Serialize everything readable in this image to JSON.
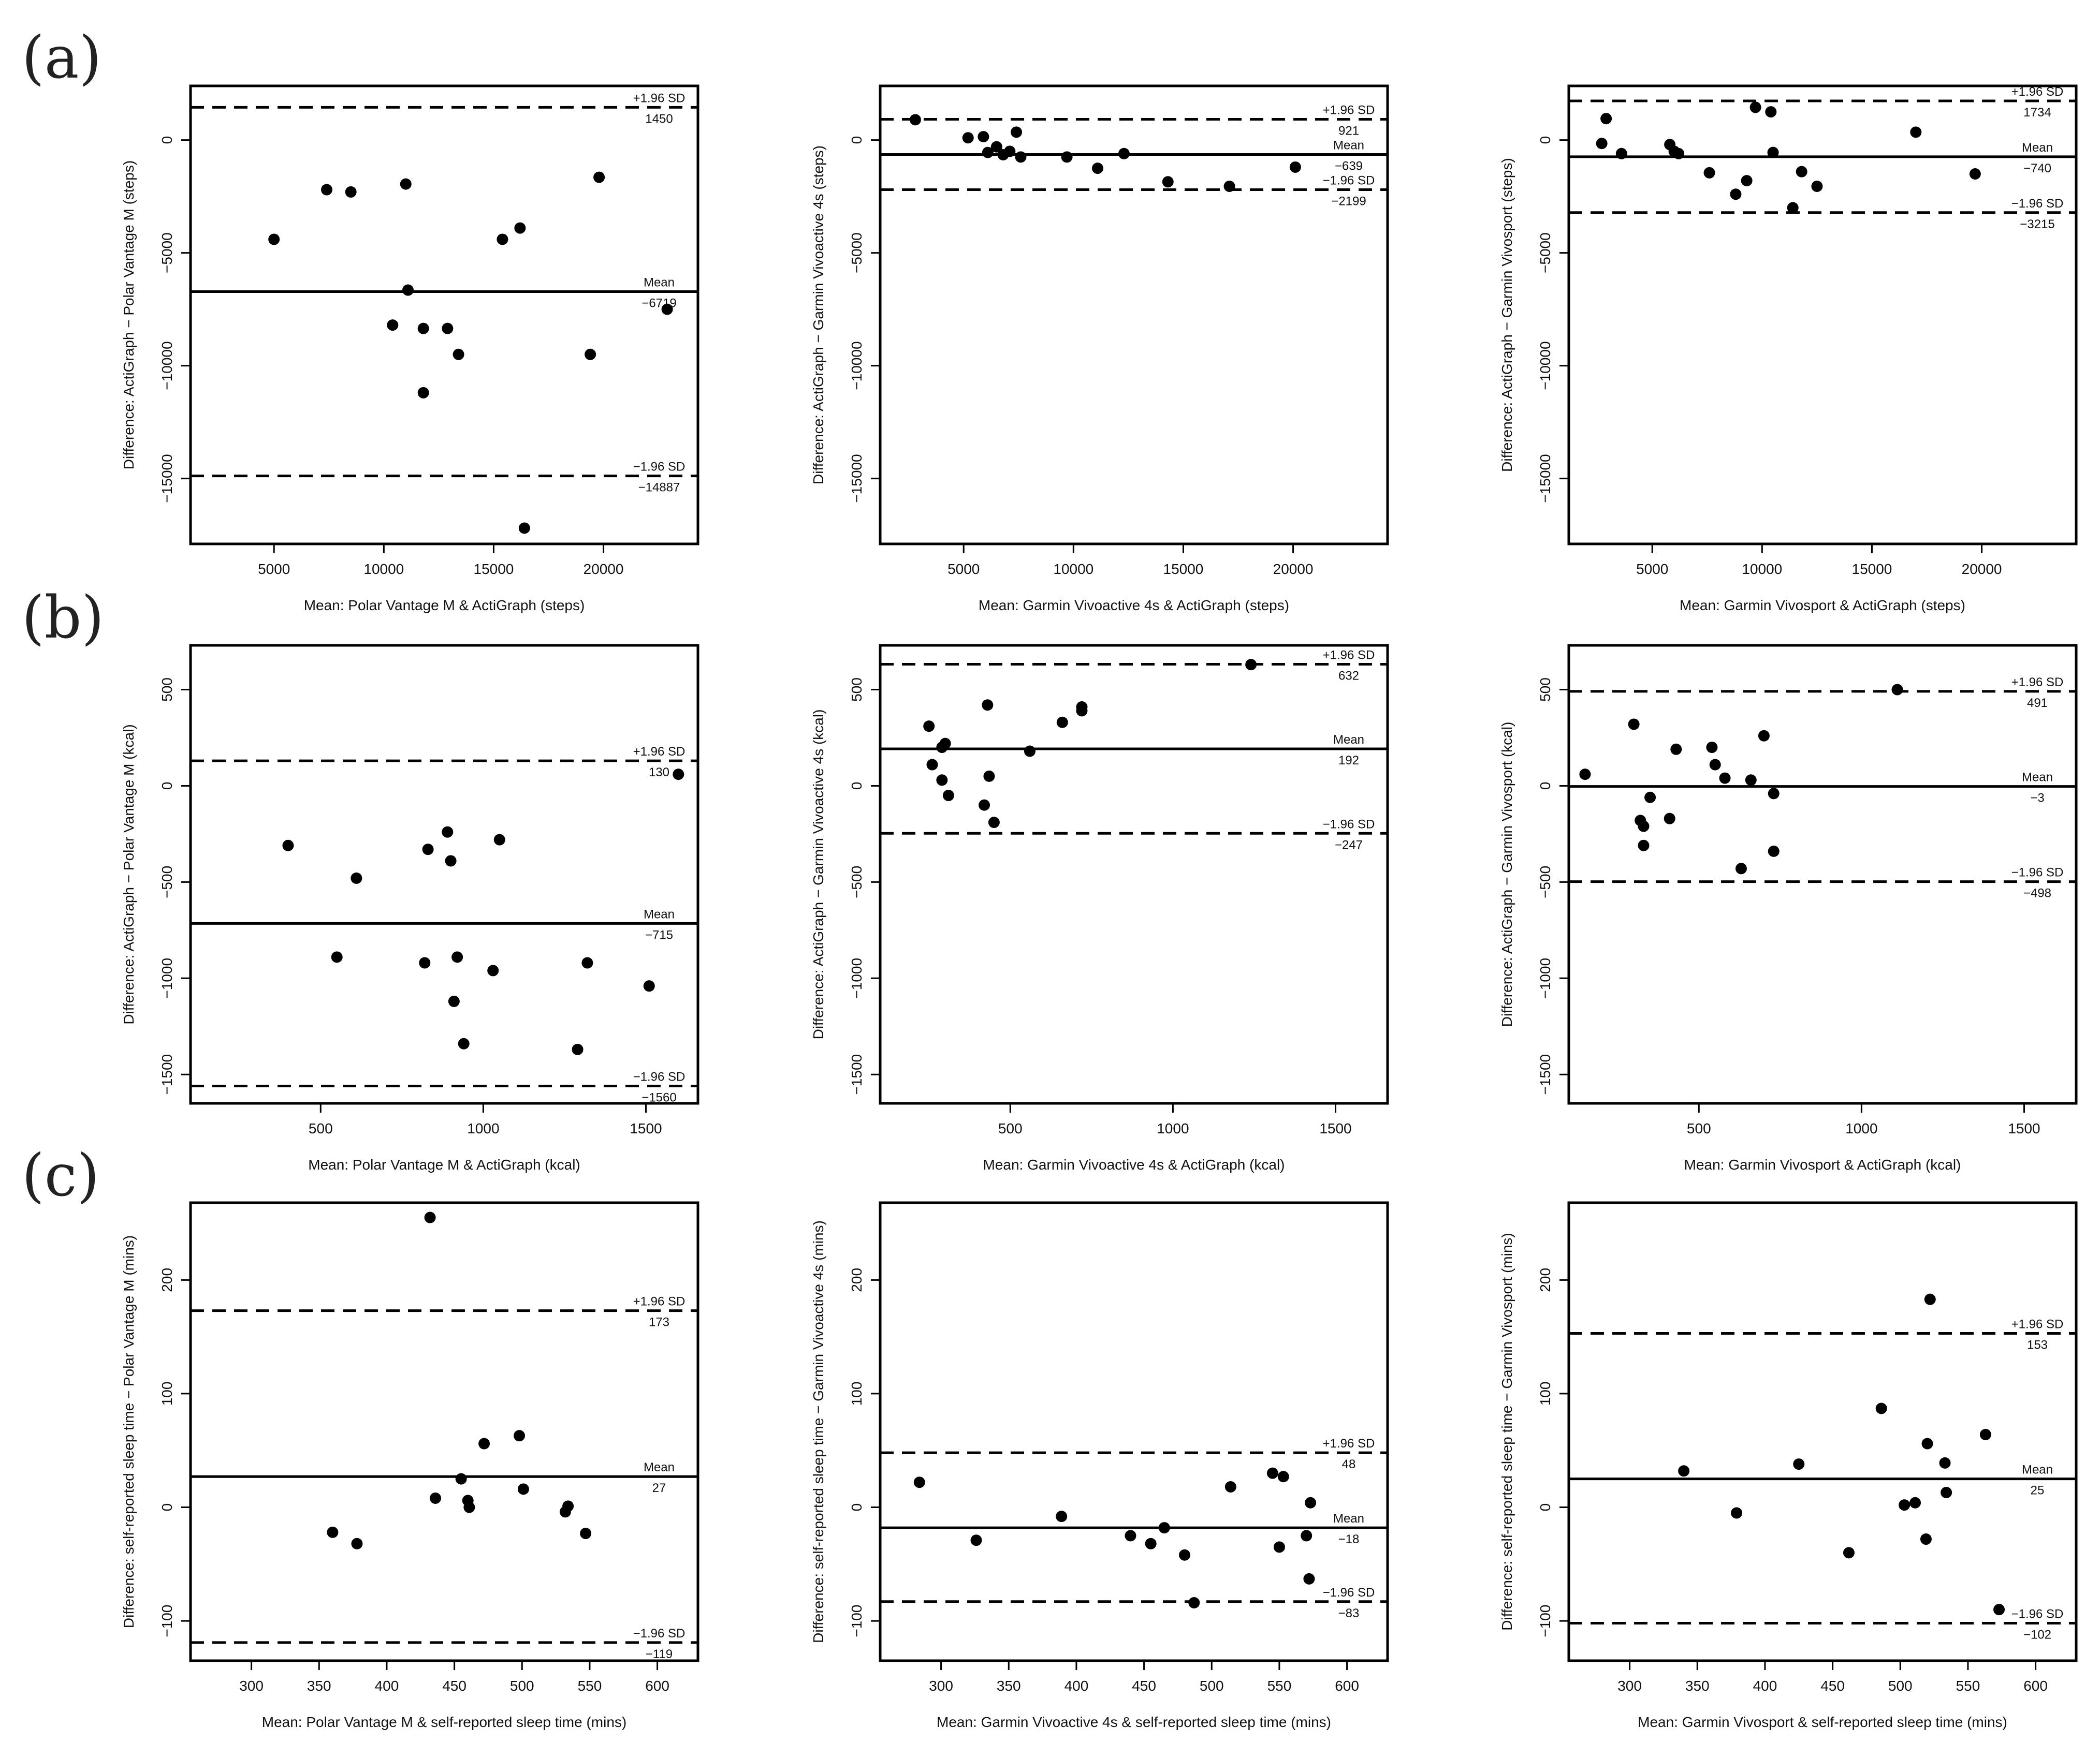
{
  "rows": [
    {
      "label": "(a)"
    },
    {
      "label": "(b)"
    },
    {
      "label": "(c)"
    }
  ],
  "chart_data": [
    {
      "type": "scatter",
      "row": 0,
      "col": 0,
      "xlabel": "Mean: Polar Vantage M & ActiGraph (steps)",
      "ylabel": "Difference: ActiGraph − Polar Vantage M (steps)",
      "xlim": [
        1200,
        24300
      ],
      "ylim": [
        -17900,
        2400
      ],
      "xticks": [
        5000,
        10000,
        15000,
        20000
      ],
      "yticks": [
        0,
        -5000,
        -10000,
        -15000
      ],
      "mean": -6719,
      "upper_loa": 1450,
      "lower_loa": -14887,
      "mean_label": "Mean",
      "mean_value": "−6719",
      "upper_label": "+1.96 SD",
      "upper_value": "1450",
      "lower_label": "−1.96 SD",
      "lower_value": "−14887",
      "points": [
        [
          5000,
          -4400
        ],
        [
          7400,
          -2200
        ],
        [
          8500,
          -2300
        ],
        [
          10400,
          -8200
        ],
        [
          11000,
          -1950
        ],
        [
          11100,
          -6650
        ],
        [
          11800,
          -8350
        ],
        [
          11800,
          -11200
        ],
        [
          12900,
          -8350
        ],
        [
          13400,
          -9500
        ],
        [
          15400,
          -4400
        ],
        [
          16200,
          -3900
        ],
        [
          16400,
          -17200
        ],
        [
          19400,
          -9500
        ],
        [
          19800,
          -1650
        ],
        [
          22900,
          -7500
        ]
      ]
    },
    {
      "type": "scatter",
      "row": 0,
      "col": 1,
      "xlabel": "Mean: Garmin Vivoactive 4s & ActiGraph (steps)",
      "ylabel": "Difference: ActiGraph − Garmin Vivoactive 4s (steps)",
      "xlim": [
        1200,
        24300
      ],
      "ylim": [
        -17900,
        2400
      ],
      "xticks": [
        5000,
        10000,
        15000,
        20000
      ],
      "yticks": [
        0,
        -5000,
        -10000,
        -15000
      ],
      "mean": -639,
      "upper_loa": 921,
      "lower_loa": -2199,
      "mean_label": "Mean",
      "mean_value": "−639",
      "upper_label": "+1.96 SD",
      "upper_value": "921",
      "lower_label": "−1.96 SD",
      "lower_value": "−2199",
      "points": [
        [
          2800,
          900
        ],
        [
          5200,
          100
        ],
        [
          5900,
          150
        ],
        [
          6100,
          -550
        ],
        [
          6500,
          -300
        ],
        [
          6800,
          -650
        ],
        [
          7100,
          -500
        ],
        [
          7400,
          350
        ],
        [
          7600,
          -750
        ],
        [
          9700,
          -750
        ],
        [
          11100,
          -1250
        ],
        [
          12300,
          -600
        ],
        [
          14300,
          -1850
        ],
        [
          17100,
          -2050
        ],
        [
          20100,
          -1200
        ]
      ]
    },
    {
      "type": "scatter",
      "row": 0,
      "col": 2,
      "xlabel": "Mean: Garmin Vivosport & ActiGraph (steps)",
      "ylabel": "Difference: ActiGraph − Garmin Vivosport (steps)",
      "xlim": [
        1200,
        24300
      ],
      "ylim": [
        -17900,
        2400
      ],
      "xticks": [
        5000,
        10000,
        15000,
        20000
      ],
      "yticks": [
        0,
        -5000,
        -10000,
        -15000
      ],
      "mean": -740,
      "upper_loa": 1734,
      "lower_loa": -3215,
      "mean_label": "Mean",
      "mean_value": "−740",
      "upper_label": "+1.96 SD",
      "upper_value": "1734",
      "lower_label": "−1.96 SD",
      "lower_value": "−3215",
      "points": [
        [
          2700,
          -150
        ],
        [
          2900,
          950
        ],
        [
          3600,
          -600
        ],
        [
          5800,
          -200
        ],
        [
          6000,
          -500
        ],
        [
          6200,
          -600
        ],
        [
          7600,
          -1450
        ],
        [
          8800,
          -2400
        ],
        [
          9300,
          -1800
        ],
        [
          9700,
          1450
        ],
        [
          10400,
          1250
        ],
        [
          10500,
          -550
        ],
        [
          11400,
          -3000
        ],
        [
          11800,
          -1400
        ],
        [
          12500,
          -2050
        ],
        [
          17000,
          350
        ],
        [
          19700,
          -1500
        ]
      ]
    },
    {
      "type": "scatter",
      "row": 1,
      "col": 0,
      "xlabel": "Mean: Polar Vantage M & ActiGraph (kcal)",
      "ylabel": "Difference: ActiGraph − Polar Vantage M (kcal)",
      "xlim": [
        100,
        1660
      ],
      "ylim": [
        -1650,
        730
      ],
      "xticks": [
        500,
        1000,
        1500
      ],
      "yticks": [
        500,
        0,
        -500,
        -1000,
        -1500
      ],
      "mean": -715,
      "upper_loa": 130,
      "lower_loa": -1560,
      "mean_label": "Mean",
      "mean_value": "−715",
      "upper_label": "+1.96 SD",
      "upper_value": "130",
      "lower_label": "−1.96 SD",
      "lower_value": "−1560",
      "points": [
        [
          400,
          -310
        ],
        [
          550,
          -890
        ],
        [
          610,
          -480
        ],
        [
          820,
          -920
        ],
        [
          830,
          -330
        ],
        [
          890,
          -240
        ],
        [
          900,
          -390
        ],
        [
          910,
          -1120
        ],
        [
          920,
          -890
        ],
        [
          940,
          -1340
        ],
        [
          1030,
          -960
        ],
        [
          1050,
          -280
        ],
        [
          1290,
          -1370
        ],
        [
          1320,
          -920
        ],
        [
          1510,
          -1040
        ],
        [
          1600,
          60
        ]
      ]
    },
    {
      "type": "scatter",
      "row": 1,
      "col": 1,
      "xlabel": "Mean: Garmin Vivoactive 4s & ActiGraph (kcal)",
      "ylabel": "Difference: ActiGraph − Garmin Vivoactive 4s (kcal)",
      "xlim": [
        100,
        1660
      ],
      "ylim": [
        -1650,
        730
      ],
      "xticks": [
        500,
        1000,
        1500
      ],
      "yticks": [
        500,
        0,
        -500,
        -1000,
        -1500
      ],
      "mean": 192,
      "upper_loa": 632,
      "lower_loa": -247,
      "mean_label": "Mean",
      "mean_value": "192",
      "upper_label": "+1.96 SD",
      "upper_value": "632",
      "lower_label": "−1.96 SD",
      "lower_value": "−247",
      "points": [
        [
          250,
          310
        ],
        [
          260,
          110
        ],
        [
          290,
          200
        ],
        [
          290,
          30
        ],
        [
          300,
          220
        ],
        [
          310,
          -50
        ],
        [
          420,
          -100
        ],
        [
          430,
          420
        ],
        [
          435,
          50
        ],
        [
          450,
          -190
        ],
        [
          560,
          180
        ],
        [
          660,
          330
        ],
        [
          720,
          390
        ],
        [
          720,
          410
        ],
        [
          1240,
          630
        ]
      ]
    },
    {
      "type": "scatter",
      "row": 1,
      "col": 2,
      "xlabel": "Mean: Garmin Vivosport & ActiGraph (kcal)",
      "ylabel": "Difference: ActiGraph − Garmin Vivosport (kcal)",
      "xlim": [
        100,
        1660
      ],
      "ylim": [
        -1650,
        730
      ],
      "xticks": [
        500,
        1000,
        1500
      ],
      "yticks": [
        500,
        0,
        -500,
        -1000,
        -1500
      ],
      "mean": -3,
      "upper_loa": 491,
      "lower_loa": -498,
      "mean_label": "Mean",
      "mean_value": "−3",
      "upper_label": "+1.96 SD",
      "upper_value": "491",
      "lower_label": "−1.96 SD",
      "lower_value": "−498",
      "points": [
        [
          150,
          60
        ],
        [
          300,
          320
        ],
        [
          320,
          -180
        ],
        [
          330,
          -210
        ],
        [
          330,
          -310
        ],
        [
          350,
          -60
        ],
        [
          410,
          -170
        ],
        [
          430,
          190
        ],
        [
          540,
          200
        ],
        [
          550,
          110
        ],
        [
          580,
          40
        ],
        [
          630,
          -430
        ],
        [
          660,
          30
        ],
        [
          700,
          260
        ],
        [
          730,
          -40
        ],
        [
          730,
          -340
        ],
        [
          1110,
          500
        ]
      ]
    },
    {
      "type": "scatter",
      "row": 2,
      "col": 0,
      "xlabel": "Mean: Polar Vantage M & self-reported sleep time (mins)",
      "ylabel": "Difference: self-reported sleep time − Polar Vantage M (mins)",
      "xlim": [
        255,
        630
      ],
      "ylim": [
        -135,
        268
      ],
      "xticks": [
        300,
        350,
        400,
        450,
        500,
        550,
        600
      ],
      "yticks": [
        200,
        100,
        0,
        -100
      ],
      "mean": 27,
      "upper_loa": 173,
      "lower_loa": -119,
      "mean_label": "Mean",
      "mean_value": "27",
      "upper_label": "+1.96 SD",
      "upper_value": "173",
      "lower_label": "−1.96 SD",
      "lower_value": "−119",
      "points": [
        [
          360,
          -22
        ],
        [
          378,
          -32
        ],
        [
          432,
          255
        ],
        [
          436,
          8
        ],
        [
          455,
          25
        ],
        [
          460,
          6
        ],
        [
          461,
          0
        ],
        [
          472,
          56
        ],
        [
          498,
          63
        ],
        [
          501,
          16
        ],
        [
          532,
          -4
        ],
        [
          534,
          1
        ],
        [
          547,
          -23
        ]
      ]
    },
    {
      "type": "scatter",
      "row": 2,
      "col": 1,
      "xlabel": "Mean: Garmin Vivoactive 4s & self-reported sleep time (mins)",
      "ylabel": "Difference: self-reported sleep time − Garmin Vivoactive 4s (mins)",
      "xlim": [
        255,
        630
      ],
      "ylim": [
        -135,
        268
      ],
      "xticks": [
        300,
        350,
        400,
        450,
        500,
        550,
        600
      ],
      "yticks": [
        200,
        100,
        0,
        -100
      ],
      "mean": -18,
      "upper_loa": 48,
      "lower_loa": -83,
      "mean_label": "Mean",
      "mean_value": "−18",
      "upper_label": "+1.96 SD",
      "upper_value": "48",
      "lower_label": "−1.96 SD",
      "lower_value": "−83",
      "points": [
        [
          284,
          22
        ],
        [
          326,
          -29
        ],
        [
          389,
          -8
        ],
        [
          440,
          -25
        ],
        [
          455,
          -32
        ],
        [
          465,
          -18
        ],
        [
          480,
          -42
        ],
        [
          487,
          -84
        ],
        [
          514,
          18
        ],
        [
          545,
          30
        ],
        [
          550,
          -35
        ],
        [
          553,
          27
        ],
        [
          570,
          -25
        ],
        [
          572,
          -63
        ],
        [
          573,
          4
        ]
      ]
    },
    {
      "type": "scatter",
      "row": 2,
      "col": 2,
      "xlabel": "Mean: Garmin Vivosport & self-reported sleep time (mins)",
      "ylabel": "Difference: self-reported sleep time − Garmin Vivosport (mins)",
      "xlim": [
        255,
        630
      ],
      "ylim": [
        -135,
        268
      ],
      "xticks": [
        300,
        350,
        400,
        450,
        500,
        550,
        600
      ],
      "yticks": [
        200,
        100,
        0,
        -100
      ],
      "mean": 25,
      "upper_loa": 153,
      "lower_loa": -102,
      "mean_label": "Mean",
      "mean_value": "25",
      "upper_label": "+1.96 SD",
      "upper_value": "153",
      "lower_label": "−1.96 SD",
      "lower_value": "−102",
      "points": [
        [
          340,
          32
        ],
        [
          379,
          -5
        ],
        [
          425,
          38
        ],
        [
          462,
          -40
        ],
        [
          486,
          87
        ],
        [
          503,
          2
        ],
        [
          511,
          4
        ],
        [
          519,
          -28
        ],
        [
          520,
          56
        ],
        [
          522,
          183
        ],
        [
          533,
          39
        ],
        [
          534,
          13
        ],
        [
          563,
          64
        ],
        [
          573,
          -90
        ]
      ]
    }
  ]
}
